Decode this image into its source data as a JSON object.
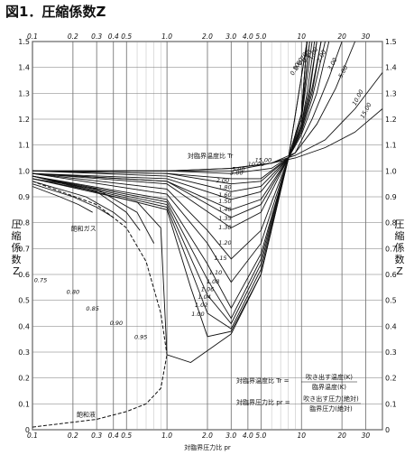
{
  "title": "図1．圧縮係数Z",
  "chart_data": {
    "type": "line",
    "title": "図1．圧縮係数Z",
    "ylabel": "圧縮係数Z",
    "xlabel": "対臨界圧力比 pr",
    "xscale": "log",
    "xlim": [
      0.1,
      40
    ],
    "ylim": [
      0.0,
      1.5
    ],
    "grid": true,
    "x_ticks": [
      "0.1",
      "0.2",
      "0.3",
      "0.4",
      "0.5",
      "1.0",
      "2.0",
      "3.0",
      "4.0",
      "5.0",
      "10",
      "20",
      "30"
    ],
    "x_tick_values": [
      0.1,
      0.2,
      0.3,
      0.4,
      0.5,
      1.0,
      2.0,
      3.0,
      4.0,
      5.0,
      10,
      20,
      30
    ],
    "y_ticks": [
      "0",
      "0.1",
      "0.2",
      "0.3",
      "0.4",
      "0.5",
      "0.6",
      "0.7",
      "0.8",
      "0.9",
      "1.0",
      "1.1",
      "1.2",
      "1.3",
      "1.4",
      "1.5"
    ],
    "y_tick_values": [
      0,
      0.1,
      0.2,
      0.3,
      0.4,
      0.5,
      0.6,
      0.7,
      0.8,
      0.9,
      1.0,
      1.1,
      1.2,
      1.3,
      1.4,
      1.5
    ],
    "series": [
      {
        "name": "15.00",
        "x": [
          0.1,
          1,
          3,
          6,
          9,
          15,
          25,
          40
        ],
        "y": [
          1.0,
          1.0,
          1.01,
          1.03,
          1.05,
          1.09,
          1.15,
          1.24
        ]
      },
      {
        "name": "10.00",
        "x": [
          0.1,
          1,
          3,
          6,
          9,
          15,
          25,
          40
        ],
        "y": [
          1.0,
          1.0,
          1.01,
          1.03,
          1.06,
          1.12,
          1.24,
          1.38
        ]
      },
      {
        "name": "5.00",
        "x": [
          0.1,
          1,
          3,
          6,
          9,
          13,
          18,
          25
        ],
        "y": [
          1.0,
          1.0,
          1.0,
          1.03,
          1.07,
          1.18,
          1.32,
          1.5
        ]
      },
      {
        "name": "3.00",
        "x": [
          0.1,
          1,
          3,
          6,
          9,
          12,
          16,
          20
        ],
        "y": [
          1.0,
          1.0,
          0.99,
          1.01,
          1.07,
          1.2,
          1.36,
          1.5
        ]
      },
      {
        "name": "2.00",
        "x": [
          0.1,
          1,
          3,
          5,
          8,
          10,
          13,
          16
        ],
        "y": [
          1.0,
          0.99,
          0.97,
          0.97,
          1.05,
          1.14,
          1.3,
          1.5
        ]
      },
      {
        "name": "1.80",
        "x": [
          0.1,
          1,
          3,
          5,
          8,
          10,
          12,
          15
        ],
        "y": [
          1.0,
          0.99,
          0.95,
          0.96,
          1.05,
          1.15,
          1.28,
          1.5
        ]
      },
      {
        "name": "1.60",
        "x": [
          0.1,
          1,
          3,
          5,
          8,
          10,
          12,
          14
        ],
        "y": [
          1.0,
          0.98,
          0.92,
          0.94,
          1.05,
          1.16,
          1.3,
          1.5
        ]
      },
      {
        "name": "1.50",
        "x": [
          0.1,
          1,
          3,
          5,
          8,
          10,
          12,
          14
        ],
        "y": [
          0.99,
          0.97,
          0.89,
          0.92,
          1.05,
          1.16,
          1.32,
          1.5
        ]
      },
      {
        "name": "1.40",
        "x": [
          0.1,
          1,
          3,
          5,
          8,
          10,
          11.5,
          13
        ],
        "y": [
          0.99,
          0.96,
          0.85,
          0.89,
          1.05,
          1.17,
          1.3,
          1.5
        ]
      },
      {
        "name": "1.35",
        "x": [
          0.1,
          1,
          3,
          5,
          8,
          10,
          11.5,
          13
        ],
        "y": [
          0.99,
          0.96,
          0.82,
          0.87,
          1.05,
          1.18,
          1.32,
          1.5
        ]
      },
      {
        "name": "1.30",
        "x": [
          0.1,
          1,
          3,
          5,
          8,
          10,
          11,
          12.5
        ],
        "y": [
          0.99,
          0.95,
          0.78,
          0.84,
          1.05,
          1.18,
          1.3,
          1.5
        ]
      },
      {
        "name": "1.20",
        "x": [
          0.1,
          1,
          2,
          3,
          5,
          8,
          10,
          12
        ],
        "y": [
          0.99,
          0.93,
          0.77,
          0.66,
          0.77,
          1.05,
          1.2,
          1.5
        ]
      },
      {
        "name": "1.15",
        "x": [
          0.1,
          1,
          2,
          3,
          5,
          8,
          10,
          11.5
        ],
        "y": [
          0.99,
          0.91,
          0.72,
          0.57,
          0.72,
          1.05,
          1.2,
          1.5
        ]
      },
      {
        "name": "1.10",
        "x": [
          0.1,
          1,
          2,
          3,
          5,
          8,
          10,
          11.5
        ],
        "y": [
          0.98,
          0.89,
          0.64,
          0.47,
          0.68,
          1.05,
          1.22,
          1.5
        ]
      },
      {
        "name": "1.08",
        "x": [
          0.1,
          1,
          2,
          3,
          5,
          8,
          10,
          11
        ],
        "y": [
          0.98,
          0.88,
          0.58,
          0.43,
          0.66,
          1.05,
          1.22,
          1.5
        ]
      },
      {
        "name": "1.06",
        "x": [
          0.1,
          1,
          2,
          3,
          5,
          8,
          10,
          11
        ],
        "y": [
          0.98,
          0.87,
          0.52,
          0.41,
          0.64,
          1.05,
          1.22,
          1.5
        ]
      },
      {
        "name": "1.04",
        "x": [
          0.1,
          1,
          2,
          3,
          5,
          8,
          10,
          11
        ],
        "y": [
          0.98,
          0.86,
          0.45,
          0.39,
          0.62,
          1.05,
          1.22,
          1.5
        ]
      },
      {
        "name": "1.02",
        "x": [
          0.1,
          1,
          1.5,
          2,
          3,
          5,
          8,
          11
        ],
        "y": [
          0.98,
          0.85,
          0.55,
          0.36,
          0.38,
          0.6,
          1.05,
          1.5
        ]
      },
      {
        "name": "1.00",
        "x": [
          0.1,
          0.6,
          0.9,
          1.0,
          1.5,
          3,
          5,
          8,
          11
        ],
        "y": [
          0.97,
          0.88,
          0.78,
          0.29,
          0.26,
          0.37,
          0.6,
          1.05,
          1.5
        ]
      },
      {
        "name": "0.95",
        "x": [
          0.1,
          0.3,
          0.6,
          0.8
        ],
        "y": [
          0.97,
          0.93,
          0.84,
          0.72
        ]
      },
      {
        "name": "0.90",
        "x": [
          0.1,
          0.3,
          0.5,
          0.63
        ],
        "y": [
          0.97,
          0.92,
          0.84,
          0.77
        ]
      },
      {
        "name": "0.85",
        "x": [
          0.1,
          0.25,
          0.4,
          0.5
        ],
        "y": [
          0.96,
          0.9,
          0.84,
          0.8
        ]
      },
      {
        "name": "0.80",
        "x": [
          0.1,
          0.2,
          0.3,
          0.4
        ],
        "y": [
          0.95,
          0.9,
          0.86,
          0.82
        ]
      },
      {
        "name": "0.75",
        "x": [
          0.1,
          0.16,
          0.22,
          0.28
        ],
        "y": [
          0.94,
          0.9,
          0.87,
          0.84
        ]
      }
    ],
    "tr_ticks": [
      "15.00",
      "10.00",
      "5.00",
      "3.00",
      "2.00",
      "1.80",
      "1.60",
      "1.50",
      "1.40",
      "1.35",
      "1.30",
      "1.20",
      "1.15",
      "1.10",
      "1.08",
      "1.06",
      "1.04",
      "1.02",
      "1.00"
    ],
    "tr_label_marks": [
      "0.75",
      "0.80",
      "0.85",
      "0.90",
      "0.95"
    ],
    "top_curve_labels": [
      "0.50",
      "0.60",
      "0.70",
      "0.80",
      "1.00",
      "2.00",
      "3.00",
      "5.00",
      "10.00",
      "15.00"
    ],
    "annotations": {
      "tr_label": "対臨界温度比 Tr",
      "saturated_gas": "飽和ガス",
      "saturated_liquid": "飽和液",
      "tr_def_left": "対臨界温度比 Tr =",
      "tr_def_num": "吹き出す温度(K)",
      "tr_def_den": "臨界温度(K)",
      "pr_def_left": "対臨界圧力比 pr =",
      "pr_def_num": "吹き出す圧力(絶対)",
      "pr_def_den": "臨界圧力(絶対)"
    },
    "side_label": [
      "圧",
      "縮",
      "係",
      "数",
      "Z"
    ]
  }
}
